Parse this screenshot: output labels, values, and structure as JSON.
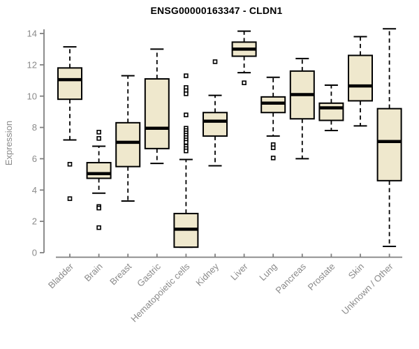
{
  "chart_data": {
    "type": "boxplot",
    "title": "ENSG00000163347 - CLDN1",
    "ylabel": "Expression",
    "xlabel": "",
    "ylim": [
      0,
      14
    ],
    "yticks": [
      0,
      2,
      4,
      6,
      8,
      10,
      12,
      14
    ],
    "grid": false,
    "legend": false,
    "categories": [
      "Bladder",
      "Brain",
      "Breast",
      "Gastric",
      "Hematopoietic cells",
      "Kidney",
      "Liver",
      "Lung",
      "Pancreas",
      "Prostate",
      "Skin",
      "Unknown / Other"
    ],
    "boxes": [
      {
        "label": "Bladder",
        "whisker_low": 7.2,
        "q1": 9.8,
        "median": 11.05,
        "q3": 11.8,
        "whisker_high": 13.15,
        "outliers": [
          5.65,
          3.45
        ]
      },
      {
        "label": "Brain",
        "whisker_low": 3.8,
        "q1": 4.75,
        "median": 5.05,
        "q3": 5.75,
        "whisker_high": 6.8,
        "outliers": [
          7.7,
          7.3,
          2.95,
          2.85,
          1.6
        ]
      },
      {
        "label": "Breast",
        "whisker_low": 3.3,
        "q1": 5.5,
        "median": 7.05,
        "q3": 8.3,
        "whisker_high": 11.3,
        "outliers": []
      },
      {
        "label": "Gastric",
        "whisker_low": 5.7,
        "q1": 6.65,
        "median": 7.95,
        "q3": 11.1,
        "whisker_high": 13.0,
        "outliers": []
      },
      {
        "label": "Hematopoietic cells",
        "whisker_low": 0.35,
        "q1": 0.35,
        "median": 1.5,
        "q3": 2.5,
        "whisker_high": 5.95,
        "outliers": [
          11.3,
          10.55,
          10.35,
          10.15,
          8.8,
          7.95,
          7.8,
          7.65,
          7.5,
          7.35,
          7.2,
          7.05,
          6.8,
          6.65,
          6.5
        ]
      },
      {
        "label": "Kidney",
        "whisker_low": 5.55,
        "q1": 7.45,
        "median": 8.4,
        "q3": 8.95,
        "whisker_high": 10.05,
        "outliers": [
          12.2
        ]
      },
      {
        "label": "Liver",
        "whisker_low": 11.5,
        "q1": 12.55,
        "median": 13.0,
        "q3": 13.45,
        "whisker_high": 14.15,
        "outliers": [
          10.85
        ]
      },
      {
        "label": "Lung",
        "whisker_low": 7.45,
        "q1": 8.95,
        "median": 9.55,
        "q3": 9.95,
        "whisker_high": 11.2,
        "outliers": [
          6.9,
          6.7,
          6.05
        ]
      },
      {
        "label": "Pancreas",
        "whisker_low": 6.0,
        "q1": 8.55,
        "median": 10.1,
        "q3": 11.6,
        "whisker_high": 12.4,
        "outliers": []
      },
      {
        "label": "Prostate",
        "whisker_low": 7.8,
        "q1": 8.45,
        "median": 9.25,
        "q3": 9.55,
        "whisker_high": 10.7,
        "outliers": []
      },
      {
        "label": "Skin",
        "whisker_low": 8.1,
        "q1": 9.7,
        "median": 10.65,
        "q3": 12.6,
        "whisker_high": 13.8,
        "outliers": []
      },
      {
        "label": "Unknown / Other",
        "whisker_low": 0.4,
        "q1": 4.6,
        "median": 7.1,
        "q3": 9.2,
        "whisker_high": 14.3,
        "outliers": []
      }
    ],
    "colors": {
      "box_fill": "#EFE8CD",
      "box_stroke": "#000000",
      "median": "#000000",
      "whisker": "#000000",
      "outlier_stroke": "#000000",
      "axis": "#808080",
      "tick_label": "#8A8A8A",
      "title": "#000000",
      "background": "#FFFFFF"
    }
  }
}
